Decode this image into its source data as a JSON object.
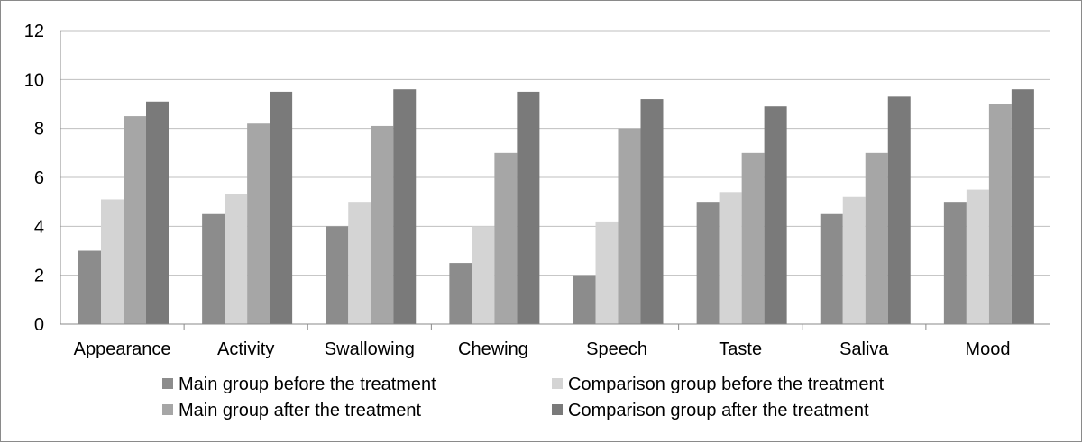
{
  "chart_data": {
    "type": "bar",
    "title": "",
    "xlabel": "",
    "ylabel": "",
    "ylim": [
      0,
      12
    ],
    "yticks": [
      0,
      2,
      4,
      6,
      8,
      10,
      12
    ],
    "grid": true,
    "legend_position": "bottom",
    "categories": [
      "Appearance",
      "Activity",
      "Swallowing",
      "Chewing",
      "Speech",
      "Taste",
      "Saliva",
      "Mood"
    ],
    "series": [
      {
        "name": "Main group before the treatment",
        "color": "#8c8c8c",
        "values": [
          3,
          4.5,
          4,
          2.5,
          2,
          5,
          4.5,
          5
        ]
      },
      {
        "name": "Comparison group before the treatment",
        "color": "#d4d4d4",
        "values": [
          5.1,
          5.3,
          5,
          4,
          4.2,
          5.4,
          5.2,
          5.5
        ]
      },
      {
        "name": "Main group after the treatment",
        "color": "#a6a6a6",
        "values": [
          8.5,
          8.2,
          8.1,
          7,
          8,
          7,
          7,
          9
        ]
      },
      {
        "name": "Comparison group after the treatment",
        "color": "#7a7a7a",
        "values": [
          9.1,
          9.5,
          9.6,
          9.5,
          9.2,
          8.9,
          9.3,
          9.6
        ]
      }
    ],
    "colors": {
      "gridline": "#bfbfbf",
      "axis": "#8a8a8a"
    }
  }
}
